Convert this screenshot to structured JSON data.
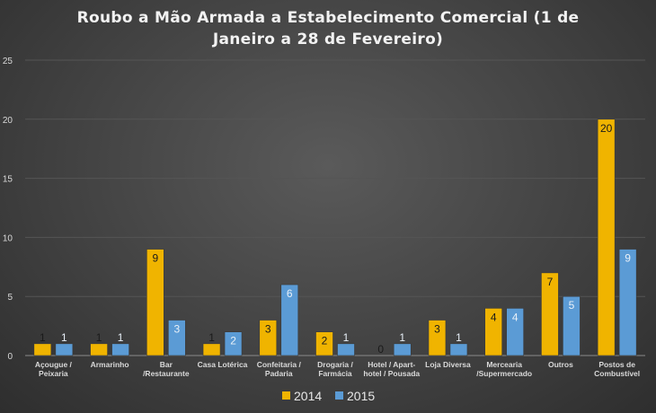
{
  "chart_data": {
    "type": "bar",
    "title_line1": "Roubo a Mão Armada a Estabelecimento Comercial (1 de",
    "title_line2": "Janeiro a 28 de Fevereiro)",
    "categories": [
      [
        "Açougue /",
        "Peixaria"
      ],
      [
        "Armarinho"
      ],
      [
        "Bar",
        "/Restaurante"
      ],
      [
        "Casa Lotérica"
      ],
      [
        "Confeitaria /",
        "Padaria"
      ],
      [
        "Drogaria /",
        "Farmácia"
      ],
      [
        "Hotel / Apart-",
        "hotel / Pousada"
      ],
      [
        "Loja Diversa"
      ],
      [
        "Mercearia",
        "/Supermercado"
      ],
      [
        "Outros"
      ],
      [
        "Postos de",
        "Combustível"
      ]
    ],
    "series": [
      {
        "name": "2014",
        "color": "#f0b400",
        "values": [
          1,
          1,
          9,
          1,
          3,
          2,
          0,
          3,
          4,
          7,
          20
        ]
      },
      {
        "name": "2015",
        "color": "#5b9bd5",
        "values": [
          1,
          1,
          3,
          2,
          6,
          1,
          1,
          1,
          4,
          5,
          9
        ]
      }
    ],
    "yticks": [
      0,
      5,
      10,
      15,
      20,
      25
    ],
    "ylim": [
      0,
      25
    ],
    "xlabel": "",
    "ylabel": "",
    "grid": true,
    "legend_position": "bottom"
  }
}
